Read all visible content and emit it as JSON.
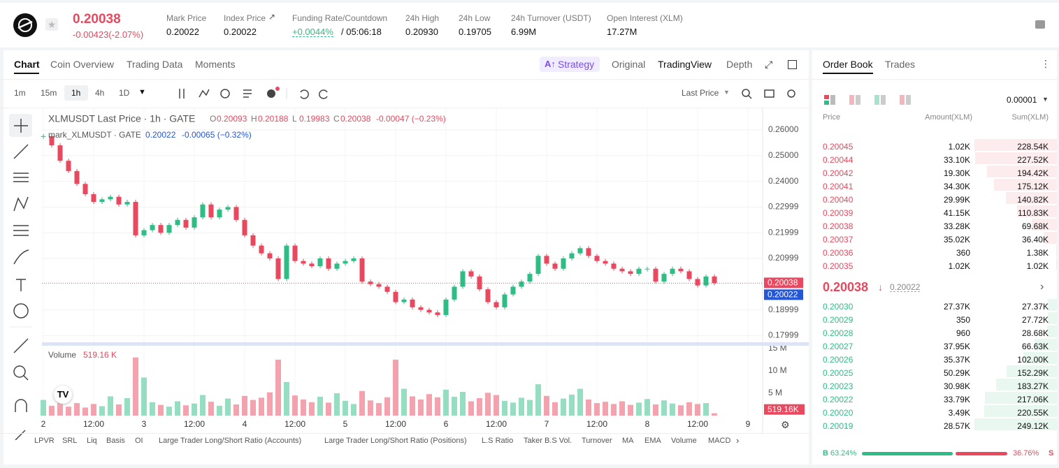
{
  "header": {
    "price": "0.20038",
    "change": "-0.00423(-2.07%)",
    "stats": [
      {
        "label": "Mark Price",
        "value": "0.20022"
      },
      {
        "label": "Index Price",
        "value": "0.20022"
      },
      {
        "label": "Funding Rate/Countdown",
        "value": "+0.0044%",
        "extra": "/ 05:06:18"
      },
      {
        "label": "24h High",
        "value": "0.20930"
      },
      {
        "label": "24h Low",
        "value": "0.19705"
      },
      {
        "label": "24h Turnover (USDT)",
        "value": "6.99M"
      },
      {
        "label": "Open Interest (XLM)",
        "value": "17.27M"
      }
    ]
  },
  "tabs": [
    "Chart",
    "Coin Overview",
    "Trading Data",
    "Moments"
  ],
  "views": [
    "Strategy",
    "Original",
    "TradingView",
    "Depth"
  ],
  "intervals": [
    "1m",
    "15m",
    "1h",
    "4h",
    "1D"
  ],
  "price_source": "Last Price",
  "chart_data": {
    "type": "candlestick",
    "legend": {
      "title": "XLMUSDT Last Price · 1h · GATE",
      "ohlc": [
        {
          "k": "O",
          "v": "0.20093"
        },
        {
          "k": "H",
          "v": "0.20188"
        },
        {
          "k": "L",
          "v": "0.19983"
        },
        {
          "k": "C",
          "v": "0.20038"
        }
      ],
      "change": "-0.00047 (−0.23%)",
      "mark_title": "mark_XLMUSDT · GATE",
      "mark_value": "0.20022",
      "mark_change": "-0.00065 (−0.32%)"
    },
    "ylim": [
      0.17739,
      0.26707
    ],
    "yticks": [
      {
        "value": 0.26,
        "label": "0.26000"
      },
      {
        "value": 0.25,
        "label": "0.25000"
      },
      {
        "value": 0.24,
        "label": "0.24000"
      },
      {
        "value": 0.22999,
        "label": "0.22999"
      },
      {
        "value": 0.21999,
        "label": "0.21999"
      },
      {
        "value": 0.20999,
        "label": "0.20999"
      },
      {
        "value": 0.18999,
        "label": "0.18999"
      },
      {
        "value": 0.17999,
        "label": "0.17999"
      }
    ],
    "last_price_tag": "0.20038",
    "mark_price_tag": "0.20022",
    "xticks": [
      "2",
      "12:00",
      "3",
      "12:00",
      "4",
      "12:00",
      "5",
      "12:00",
      "6",
      "12:00",
      "7",
      "12:00",
      "8",
      "12:00",
      "9"
    ],
    "closes": [
      0.2576,
      0.254,
      0.248,
      0.244,
      0.239,
      0.235,
      0.232,
      0.233,
      0.234,
      0.231,
      0.232,
      0.219,
      0.221,
      0.223,
      0.22,
      0.223,
      0.225,
      0.222,
      0.226,
      0.231,
      0.226,
      0.229,
      0.23,
      0.225,
      0.219,
      0.215,
      0.212,
      0.21,
      0.202,
      0.215,
      0.209,
      0.208,
      0.207,
      0.21,
      0.206,
      0.208,
      0.209,
      0.21,
      0.201,
      0.2,
      0.199,
      0.197,
      0.193,
      0.194,
      0.191,
      0.19,
      0.189,
      0.188,
      0.194,
      0.199,
      0.205,
      0.203,
      0.198,
      0.193,
      0.191,
      0.196,
      0.199,
      0.201,
      0.204,
      0.211,
      0.208,
      0.206,
      0.21,
      0.212,
      0.214,
      0.211,
      0.209,
      0.208,
      0.206,
      0.205,
      0.204,
      0.206,
      0.206,
      0.201,
      0.204,
      0.206,
      0.205,
      0.202,
      0.1995,
      0.203,
      0.20038
    ],
    "volume_label": "Volume",
    "volume_value": "519.16 K",
    "volume_tag": "519.16K",
    "volume_ylim": [
      0,
      15600000
    ],
    "volume_ticks": [
      {
        "value": 15000000,
        "label": "15 M"
      },
      {
        "value": 10000000,
        "label": "10 M"
      },
      {
        "value": 5000000,
        "label": "5 M"
      }
    ],
    "volumes": [
      3500000,
      2200000,
      4200000,
      2000000,
      2800000,
      1800000,
      2600000,
      2100000,
      4300000,
      2500000,
      3900000,
      13000000,
      8500000,
      3000000,
      2400000,
      2000000,
      3200000,
      2300000,
      2700000,
      4600000,
      3100000,
      2200000,
      3800000,
      2500000,
      4400000,
      3500000,
      4000000,
      5200000,
      12500000,
      7500000,
      4500000,
      3600000,
      3000000,
      4200000,
      2900000,
      5000000,
      3300000,
      2600000,
      5500000,
      3400000,
      2800000,
      4100000,
      12500000,
      6000000,
      4300000,
      3600000,
      4800000,
      4100000,
      5800000,
      4200000,
      5300000,
      3200000,
      3900000,
      5100000,
      4600000,
      3300000,
      2900000,
      4000000,
      3500000,
      7000000,
      4400000,
      3000000,
      3800000,
      4700000,
      6000000,
      3600000,
      2800000,
      3100000,
      2600000,
      3200000,
      2400000,
      2900000,
      3700000,
      2500000,
      3400000,
      2700000,
      2300000,
      3000000,
      2600000,
      2800000,
      519160
    ],
    "up_color": "#2ebd85",
    "down_color": "#e9485e"
  },
  "indicators": [
    "LPVR",
    "SRL",
    "Liq",
    "Basis",
    "OI",
    "Large Trader Long/Short Ratio (Accounts)",
    "Large Trader Long/Short Ratio (Positions)",
    "L.S Ratio",
    "Taker B.S Vol.",
    "Turnover",
    "MA",
    "EMA",
    "Volume",
    "MACD"
  ],
  "order_book": {
    "tabs": [
      "Order Book",
      "Trades"
    ],
    "precision": "0.00001",
    "columns": [
      "Price",
      "Amount(XLM)",
      "Sum(XLM)"
    ],
    "asks": [
      [
        "0.20045",
        "1.02K",
        "228.54K"
      ],
      [
        "0.20044",
        "33.10K",
        "227.52K"
      ],
      [
        "0.20042",
        "19.30K",
        "194.42K"
      ],
      [
        "0.20041",
        "34.30K",
        "175.12K"
      ],
      [
        "0.20040",
        "29.99K",
        "140.82K"
      ],
      [
        "0.20039",
        "41.15K",
        "110.83K"
      ],
      [
        "0.20038",
        "33.28K",
        "69.68K"
      ],
      [
        "0.20037",
        "35.02K",
        "36.40K"
      ],
      [
        "0.20036",
        "360",
        "1.38K"
      ],
      [
        "0.20035",
        "1.02K",
        "1.02K"
      ]
    ],
    "mid_price": "0.20038",
    "mid_mark": "0.20022",
    "bids": [
      [
        "0.20030",
        "27.37K",
        "27.37K"
      ],
      [
        "0.20029",
        "350",
        "27.72K"
      ],
      [
        "0.20028",
        "960",
        "28.68K"
      ],
      [
        "0.20027",
        "37.95K",
        "66.63K"
      ],
      [
        "0.20026",
        "35.37K",
        "102.00K"
      ],
      [
        "0.20025",
        "50.29K",
        "152.29K"
      ],
      [
        "0.20023",
        "30.98K",
        "183.27K"
      ],
      [
        "0.20022",
        "33.79K",
        "217.06K"
      ],
      [
        "0.20020",
        "3.49K",
        "220.55K"
      ],
      [
        "0.20019",
        "28.57K",
        "249.12K"
      ]
    ],
    "buy_label": "B",
    "buy_pct": "63.24%",
    "sell_pct": "36.76%",
    "sell_label": "S"
  }
}
